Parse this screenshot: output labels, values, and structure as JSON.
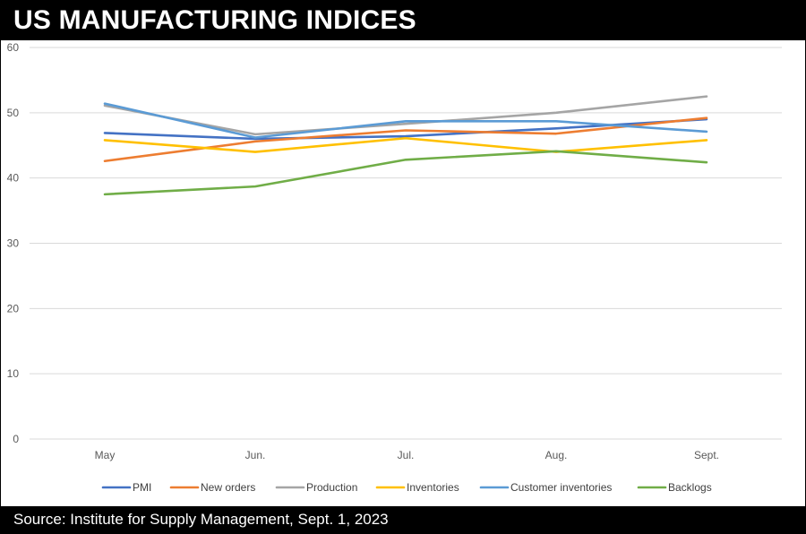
{
  "page_title": "US MANUFACTURING INDICES",
  "source": "Source: Institute for Supply Management, Sept. 1, 2023",
  "chart_data": {
    "type": "line",
    "categories": [
      "May",
      "Jun.",
      "Jul.",
      "Aug.",
      "Sept."
    ],
    "ylim": [
      0,
      60
    ],
    "yticks": [
      0,
      10,
      20,
      30,
      40,
      50,
      60
    ],
    "grid": true,
    "legend_position": "bottom",
    "series": [
      {
        "name": "PMI",
        "color": "#4472C4",
        "values": [
          46.9,
          46.0,
          46.4,
          47.6,
          49.0
        ]
      },
      {
        "name": "New orders",
        "color": "#ED7D31",
        "values": [
          42.6,
          45.6,
          47.3,
          46.8,
          49.2
        ]
      },
      {
        "name": "Production",
        "color": "#A5A5A5",
        "values": [
          51.1,
          46.7,
          48.3,
          50.0,
          52.5
        ]
      },
      {
        "name": "Inventories",
        "color": "#FFC000",
        "values": [
          45.8,
          44.0,
          46.1,
          44.0,
          45.8
        ]
      },
      {
        "name": "Customer inventories",
        "color": "#5B9BD5",
        "values": [
          51.4,
          46.2,
          48.7,
          48.7,
          47.1
        ]
      },
      {
        "name": "Backlogs",
        "color": "#70AD47",
        "values": [
          37.5,
          38.7,
          42.8,
          44.1,
          42.4
        ]
      }
    ]
  }
}
